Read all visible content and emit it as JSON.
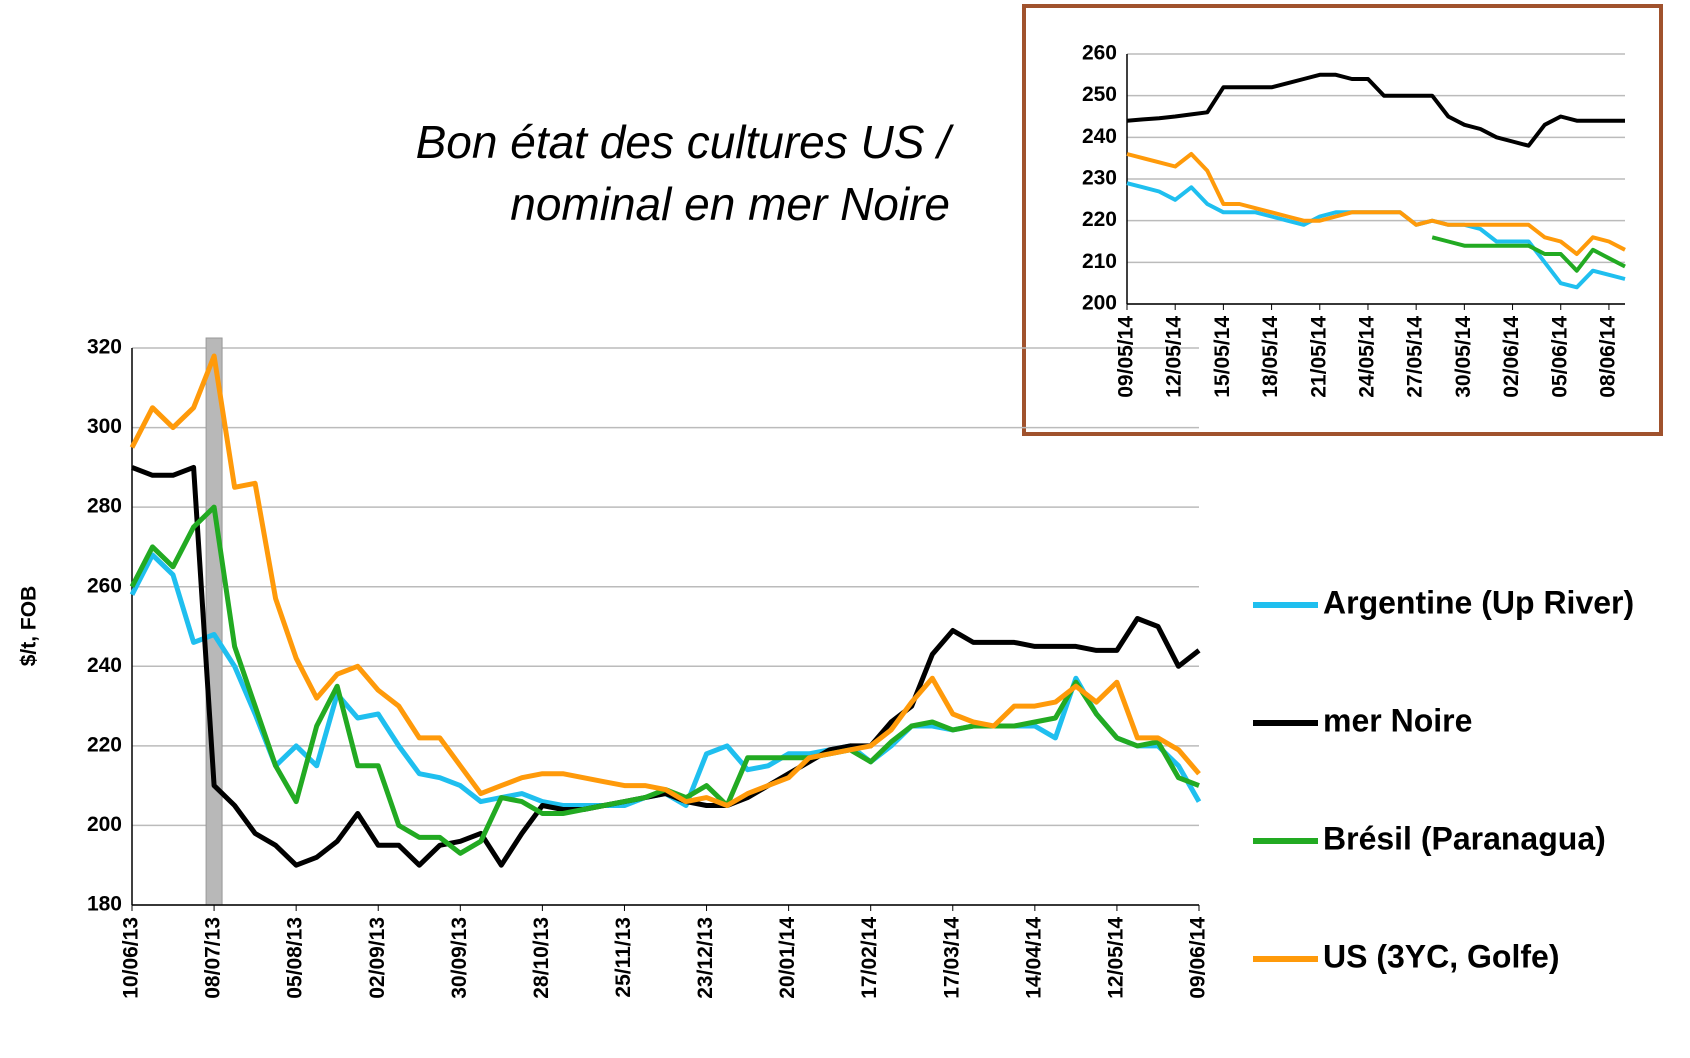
{
  "chart_data": [
    {
      "type": "line",
      "title": [
        "Bon état des cultures US /",
        "nominal en mer Noire"
      ],
      "ylabel": "$/t, FOB",
      "categories": [
        "10/06/13",
        null,
        null,
        null,
        "08/07/13",
        null,
        null,
        null,
        "05/08/13",
        null,
        null,
        null,
        "02/09/13",
        null,
        null,
        null,
        "30/09/13",
        null,
        null,
        null,
        "28/10/13",
        null,
        null,
        null,
        "25/11/13",
        null,
        null,
        null,
        "23/12/13",
        null,
        null,
        null,
        "20/01/14",
        null,
        null,
        null,
        "17/02/14",
        null,
        null,
        null,
        "17/03/14",
        null,
        null,
        null,
        "14/04/14",
        null,
        null,
        null,
        "12/05/14",
        null,
        null,
        null,
        "09/06/14"
      ],
      "ylim": [
        180,
        320
      ],
      "yticks": [
        180,
        200,
        220,
        240,
        260,
        280,
        300,
        320
      ],
      "grid": true,
      "series": [
        {
          "name": "Argentine (Up River)",
          "color": "#1fbfef",
          "values": [
            258,
            268,
            263,
            246,
            248,
            240,
            228,
            215,
            220,
            215,
            233,
            227,
            228,
            220,
            213,
            212,
            210,
            206,
            207,
            208,
            206,
            205,
            205,
            205,
            205,
            207,
            208,
            205,
            218,
            220,
            214,
            215,
            218,
            218,
            219,
            220,
            216,
            220,
            225,
            225,
            224,
            225,
            225,
            225,
            225,
            222,
            237,
            228,
            222,
            220,
            220,
            215,
            206
          ]
        },
        {
          "name": "mer Noire",
          "color": "#000000",
          "values": [
            290,
            288,
            288,
            290,
            210,
            205,
            198,
            195,
            190,
            192,
            196,
            203,
            195,
            195,
            190,
            195,
            196,
            198,
            190,
            198,
            205,
            204,
            204,
            205,
            206,
            207,
            208,
            206,
            205,
            205,
            207,
            210,
            213,
            216,
            219,
            220,
            220,
            226,
            230,
            243,
            249,
            246,
            246,
            246,
            245,
            245,
            245,
            244,
            244,
            252,
            250,
            240,
            244
          ]
        },
        {
          "name": "Brésil (Paranagua)",
          "color": "#22aa22",
          "values": [
            260,
            270,
            265,
            275,
            280,
            245,
            230,
            215,
            206,
            225,
            235,
            215,
            215,
            200,
            197,
            197,
            193,
            196,
            207,
            206,
            203,
            203,
            204,
            205,
            206,
            207,
            209,
            207,
            210,
            205,
            217,
            217,
            217,
            217,
            218,
            219,
            216,
            221,
            225,
            226,
            224,
            225,
            225,
            225,
            226,
            227,
            236,
            228,
            222,
            220,
            221,
            212,
            210
          ]
        },
        {
          "name": "US (3YC, Golfe)",
          "color": "#ff9a0a",
          "values": [
            295,
            305,
            300,
            305,
            318,
            285,
            286,
            257,
            242,
            232,
            238,
            240,
            234,
            230,
            222,
            222,
            215,
            208,
            210,
            212,
            213,
            213,
            212,
            211,
            210,
            210,
            209,
            206,
            207,
            205,
            208,
            210,
            212,
            217,
            218,
            219,
            220,
            224,
            231,
            237,
            228,
            226,
            225,
            230,
            230,
            231,
            235,
            231,
            236,
            222,
            222,
            219,
            213
          ]
        }
      ]
    },
    {
      "type": "line",
      "categories": [
        "09/05/14",
        null,
        null,
        "12/05/14",
        null,
        null,
        "15/05/14",
        null,
        null,
        "18/05/14",
        null,
        null,
        "21/05/14",
        null,
        null,
        "24/05/14",
        null,
        null,
        "27/05/14",
        null,
        null,
        "30/05/14",
        null,
        null,
        "02/06/14",
        null,
        null,
        "05/06/14",
        null,
        null,
        "08/06/14",
        null
      ],
      "ylim": [
        200,
        260
      ],
      "yticks": [
        200,
        210,
        220,
        230,
        240,
        250,
        260
      ],
      "grid": true,
      "series": [
        {
          "color": "#000000",
          "values": [
            244,
            244.3,
            244.6,
            245,
            245.5,
            246,
            252,
            252,
            252,
            252,
            253,
            254,
            255,
            255,
            254,
            254,
            250,
            250,
            250,
            250,
            245,
            243,
            242,
            240,
            239,
            238,
            243,
            245,
            244,
            244,
            244,
            244
          ]
        },
        {
          "color": "#1fbfef",
          "values": [
            229,
            228,
            227,
            225,
            228,
            224,
            222,
            222,
            222,
            221,
            220,
            219,
            221,
            222,
            222,
            222,
            222,
            222,
            219,
            220,
            219,
            219,
            218,
            215,
            215,
            215,
            210,
            205,
            204,
            208,
            207,
            206
          ]
        },
        {
          "color": "#ff9a0a",
          "values": [
            236,
            235,
            234,
            233,
            236,
            232,
            224,
            224,
            223,
            222,
            221,
            220,
            220,
            221,
            222,
            222,
            222,
            222,
            219,
            220,
            219,
            219,
            219,
            219,
            219,
            219,
            216,
            215,
            212,
            216,
            215,
            213
          ]
        },
        {
          "color": "#22aa22",
          "values": [
            null,
            null,
            null,
            null,
            null,
            null,
            null,
            null,
            null,
            null,
            null,
            null,
            null,
            null,
            null,
            null,
            null,
            null,
            null,
            216,
            215,
            214,
            214,
            214,
            214,
            214,
            212,
            212,
            208,
            213,
            211,
            209
          ]
        }
      ]
    }
  ]
}
